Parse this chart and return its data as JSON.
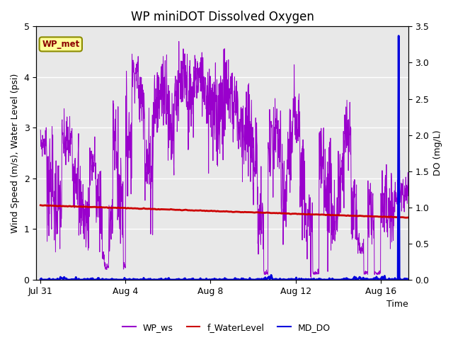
{
  "title": "WP miniDOT Dissolved Oxygen",
  "xlabel": "Time",
  "ylabel_left": "Wind Speed (m/s), Water Level (psi)",
  "ylabel_right": "DO (mg/L)",
  "annotation": "WP_met",
  "ylim_left": [
    0.0,
    5.0
  ],
  "ylim_right": [
    0.0,
    3.5
  ],
  "xtick_labels": [
    "Jul 31",
    "Aug 4",
    "Aug 8",
    "Aug 12",
    "Aug 16"
  ],
  "xtick_positions": [
    0,
    4,
    8,
    12,
    16
  ],
  "xlim": [
    -0.2,
    17.3
  ],
  "plot_bg_color": "#e8e8e8",
  "ws_color": "#9900cc",
  "wl_color": "#cc0000",
  "do_color": "#0000dd",
  "legend_entries": [
    "WP_ws",
    "f_WaterLevel",
    "MD_DO"
  ],
  "title_fontsize": 12,
  "label_fontsize": 9,
  "tick_fontsize": 9,
  "annot_text_color": "#8B0000",
  "annot_bg_color": "#FFFF99",
  "annot_edge_color": "#8B8B00",
  "seed": 7
}
